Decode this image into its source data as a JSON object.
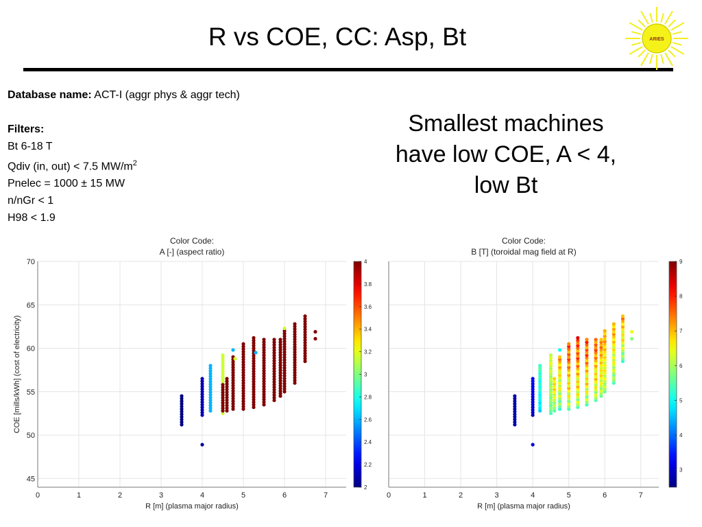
{
  "slide": {
    "title": "R vs COE, CC: Asp, Bt",
    "logo_text": "ARIES",
    "database_label": "Database name:",
    "database_value": " ACT-I  (aggr phys & aggr tech)",
    "filters_label": "Filters:",
    "filters": [
      "Bt 6-18 T",
      "Qdiv (in, out) < 7.5 MW/m",
      "Pnelec = 1000 ± 15 MW",
      "n/nGr < 1",
      "H98 < 1.9"
    ],
    "filters_superscript": "2",
    "headline": [
      "Smallest machines",
      "have low COE, A < 4,",
      "low Bt"
    ]
  },
  "chart_data": [
    {
      "type": "scatter",
      "title": "Color Code:",
      "subtitle": "A [-] (aspect ratio)",
      "xlabel": "R [m] (plasma major radius)",
      "ylabel": "COE [mills/kWh] (cost of electricity)",
      "xlim": [
        0,
        7.5
      ],
      "ylim": [
        44,
        70
      ],
      "xticks": [
        0,
        1,
        2,
        3,
        4,
        5,
        6,
        7
      ],
      "yticks": [
        45,
        50,
        55,
        60,
        65,
        70
      ],
      "grid": true,
      "colorbar": {
        "min": 2,
        "max": 4,
        "ticks": [
          "2",
          "2.2",
          "2.4",
          "2.6",
          "2.8",
          "3",
          "3.2",
          "3.4",
          "3.6",
          "3.8",
          "4"
        ]
      },
      "columns": [
        {
          "x": 3.5,
          "y": [
            51.2,
            54.5
          ],
          "c": 2.0
        },
        {
          "x": 4.0,
          "y": [
            52.3,
            56.5
          ],
          "c": 2.1
        },
        {
          "x": 4.2,
          "y": [
            52.8,
            58.0
          ],
          "c": 2.6
        },
        {
          "x": 4.5,
          "y": [
            52.5,
            59.2
          ],
          "c": 3.15
        },
        {
          "x": 4.5,
          "y": [
            52.8,
            55.8
          ],
          "c": 4.0
        },
        {
          "x": 4.6,
          "y": [
            52.8,
            56.5
          ],
          "c": 4.0
        },
        {
          "x": 4.75,
          "y": [
            53.0,
            59.0
          ],
          "c": 4.0
        },
        {
          "x": 5.0,
          "y": [
            53.0,
            60.5
          ],
          "c": 4.0
        },
        {
          "x": 5.25,
          "y": [
            53.2,
            61.2
          ],
          "c": 4.0
        },
        {
          "x": 5.5,
          "y": [
            53.5,
            61.0
          ],
          "c": 4.0
        },
        {
          "x": 5.75,
          "y": [
            54.0,
            61.0
          ],
          "c": 4.0
        },
        {
          "x": 5.9,
          "y": [
            54.5,
            61.0
          ],
          "c": 4.0
        },
        {
          "x": 6.0,
          "y": [
            55.0,
            62.0
          ],
          "c": 4.0
        },
        {
          "x": 6.25,
          "y": [
            56.0,
            62.8
          ],
          "c": 4.0
        },
        {
          "x": 6.5,
          "y": [
            58.5,
            63.7
          ],
          "c": 4.0
        }
      ],
      "points": [
        {
          "x": 4.0,
          "y": 48.9,
          "c": 2.05
        },
        {
          "x": 4.75,
          "y": 59.8,
          "c": 2.6
        },
        {
          "x": 5.3,
          "y": 59.5,
          "c": 2.6
        },
        {
          "x": 4.8,
          "y": 58.8,
          "c": 3.15
        },
        {
          "x": 6.0,
          "y": 62.3,
          "c": 3.15
        },
        {
          "x": 6.75,
          "y": 61.9,
          "c": 4.0
        },
        {
          "x": 6.75,
          "y": 61.1,
          "c": 4.0
        }
      ]
    },
    {
      "type": "scatter",
      "title": "Color Code:",
      "subtitle": "B [T] (toroidal mag field at R)",
      "xlabel": "R [m] (plasma major radius)",
      "ylabel": "",
      "xlim": [
        0,
        7.5
      ],
      "ylim": [
        44,
        70
      ],
      "xticks": [
        0,
        1,
        2,
        3,
        4,
        5,
        6,
        7
      ],
      "yticks": [
        45,
        50,
        55,
        60,
        65,
        70
      ],
      "grid": true,
      "colorbar": {
        "min": 2.5,
        "max": 9,
        "ticks": [
          "3",
          "4",
          "5",
          "6",
          "7",
          "8",
          "9"
        ]
      },
      "columns": [
        {
          "x": 3.5,
          "y": [
            51.2,
            54.5
          ],
          "c": [
            2.8,
            2.8
          ]
        },
        {
          "x": 4.0,
          "y": [
            52.3,
            56.5
          ],
          "c": [
            2.8,
            3.5
          ]
        },
        {
          "x": 4.2,
          "y": [
            52.8,
            58.0
          ],
          "c": [
            4.6,
            5.6
          ]
        },
        {
          "x": 4.5,
          "y": [
            52.5,
            59.2
          ],
          "c": [
            5.4,
            6.6
          ]
        },
        {
          "x": 4.6,
          "y": [
            52.8,
            56.5
          ],
          "c": [
            5.5,
            7.3
          ]
        },
        {
          "x": 4.75,
          "y": [
            53.0,
            59.0
          ],
          "c": [
            5.2,
            7.6
          ]
        },
        {
          "x": 5.0,
          "y": [
            53.0,
            60.5
          ],
          "c": [
            5.4,
            8.4
          ]
        },
        {
          "x": 5.25,
          "y": [
            53.2,
            61.2
          ],
          "c": [
            5.4,
            8.6
          ]
        },
        {
          "x": 5.5,
          "y": [
            53.5,
            61.0
          ],
          "c": [
            5.3,
            8.5
          ]
        },
        {
          "x": 5.75,
          "y": [
            54.0,
            61.0
          ],
          "c": [
            5.5,
            8.2
          ]
        },
        {
          "x": 5.9,
          "y": [
            54.5,
            61.0
          ],
          "c": [
            5.6,
            7.8
          ]
        },
        {
          "x": 6.0,
          "y": [
            55.0,
            62.0
          ],
          "c": [
            5.6,
            7.6
          ]
        },
        {
          "x": 6.25,
          "y": [
            56.0,
            62.8
          ],
          "c": [
            5.4,
            7.6
          ]
        },
        {
          "x": 6.5,
          "y": [
            58.5,
            63.7
          ],
          "c": [
            5.2,
            7.8
          ]
        }
      ],
      "points": [
        {
          "x": 4.0,
          "y": 48.9,
          "c": 3.1
        },
        {
          "x": 4.75,
          "y": 59.8,
          "c": 5.0
        },
        {
          "x": 6.75,
          "y": 61.9,
          "c": 6.4
        },
        {
          "x": 6.75,
          "y": 61.1,
          "c": 5.8
        }
      ]
    }
  ]
}
